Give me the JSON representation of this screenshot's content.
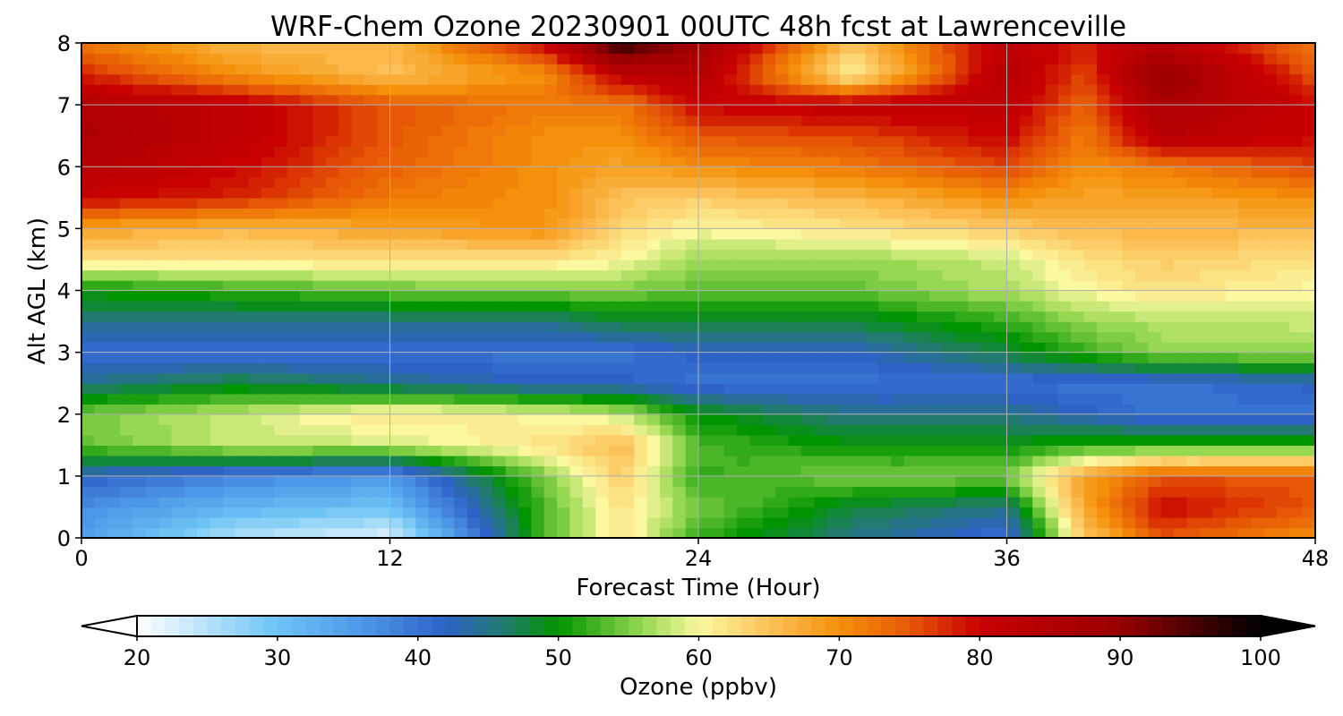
{
  "chart_data": {
    "type": "heatmap",
    "title": "WRF-Chem Ozone  20230901 00UTC 48h fcst at Lawrenceville",
    "xlabel": "Forecast Time (Hour)",
    "ylabel": "Alt AGL (km)",
    "xlim": [
      0,
      48
    ],
    "ylim": [
      0,
      8
    ],
    "xticks": [
      0,
      12,
      24,
      36,
      48
    ],
    "yticks": [
      0,
      1,
      2,
      3,
      4,
      5,
      6,
      7,
      8
    ],
    "grid": true,
    "x": [
      0,
      6,
      12,
      18,
      21,
      24,
      30,
      36,
      39,
      42,
      48
    ],
    "y": [
      0,
      0.5,
      1,
      1.5,
      2,
      2.5,
      3,
      3.5,
      4,
      4.5,
      5,
      5.5,
      6,
      6.5,
      7,
      7.5,
      8
    ],
    "z": [
      [
        35,
        25,
        22,
        53,
        62,
        52,
        45,
        40,
        64,
        75,
        70
      ],
      [
        37,
        32,
        30,
        53,
        62,
        55,
        48,
        45,
        68,
        80,
        75
      ],
      [
        42,
        38,
        36,
        55,
        64,
        52,
        55,
        55,
        68,
        75,
        75
      ],
      [
        54,
        58,
        58,
        62,
        66,
        53,
        50,
        50,
        52,
        52,
        52
      ],
      [
        55,
        58,
        62,
        60,
        58,
        50,
        45,
        45,
        42,
        40,
        40
      ],
      [
        45,
        48,
        45,
        42,
        42,
        40,
        40,
        40,
        40,
        40,
        42
      ],
      [
        40,
        40,
        40,
        40,
        40,
        42,
        42,
        48,
        52,
        56,
        56
      ],
      [
        45,
        45,
        45,
        45,
        48,
        48,
        48,
        52,
        56,
        57,
        58
      ],
      [
        50,
        52,
        54,
        55,
        55,
        54,
        54,
        57,
        60,
        62,
        60
      ],
      [
        62,
        62,
        62,
        62,
        60,
        56,
        56,
        58,
        62,
        64,
        62
      ],
      [
        68,
        66,
        68,
        70,
        63,
        60,
        62,
        64,
        66,
        66,
        66
      ],
      [
        80,
        78,
        72,
        70,
        65,
        64,
        66,
        70,
        68,
        68,
        70
      ],
      [
        84,
        80,
        74,
        70,
        68,
        70,
        72,
        76,
        70,
        72,
        76
      ],
      [
        86,
        82,
        75,
        70,
        70,
        75,
        76,
        80,
        72,
        84,
        80
      ],
      [
        85,
        82,
        75,
        72,
        72,
        80,
        82,
        82,
        74,
        86,
        80
      ],
      [
        78,
        70,
        65,
        70,
        82,
        84,
        60,
        84,
        76,
        90,
        75
      ],
      [
        72,
        66,
        66,
        80,
        98,
        88,
        65,
        82,
        78,
        84,
        72
      ]
    ],
    "colorbar": {
      "label": "Ozone  (ppbv)",
      "min": 20,
      "max": 100,
      "ticks": [
        20,
        30,
        40,
        50,
        60,
        70,
        80,
        90,
        100
      ],
      "extend": "both",
      "stops": [
        {
          "v": 20,
          "c": "#ffffff"
        },
        {
          "v": 30,
          "c": "#6cc4f5"
        },
        {
          "v": 36,
          "c": "#4d97e8"
        },
        {
          "v": 42,
          "c": "#2e62c6"
        },
        {
          "v": 46,
          "c": "#227a70"
        },
        {
          "v": 50,
          "c": "#009400"
        },
        {
          "v": 56,
          "c": "#96d850"
        },
        {
          "v": 60,
          "c": "#fbf8a0"
        },
        {
          "v": 65,
          "c": "#fcc158"
        },
        {
          "v": 70,
          "c": "#f5900a"
        },
        {
          "v": 75,
          "c": "#e65805"
        },
        {
          "v": 80,
          "c": "#c80000"
        },
        {
          "v": 90,
          "c": "#980000"
        },
        {
          "v": 100,
          "c": "#000000"
        }
      ]
    }
  }
}
